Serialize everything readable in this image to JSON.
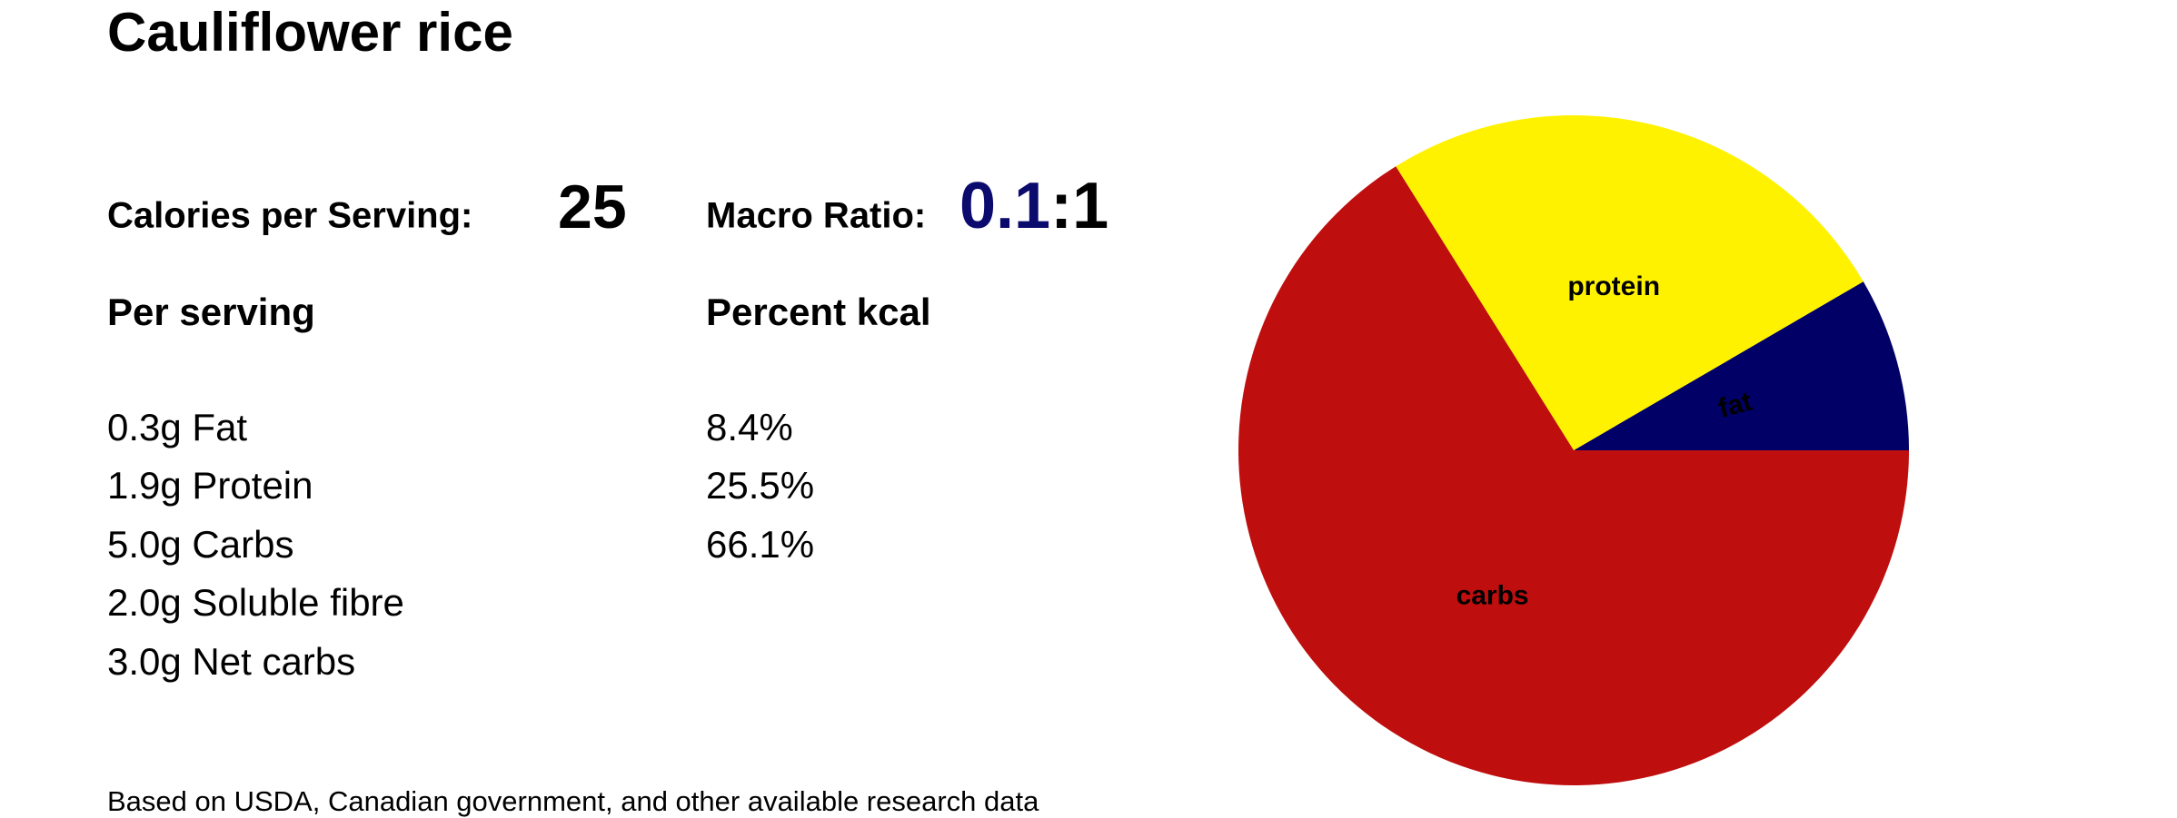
{
  "header": {
    "title": "Cauliflower rice"
  },
  "summary": {
    "calories_label": "Calories per Serving:",
    "calories": "25",
    "ratio_label": "Macro Ratio:",
    "ratio": "0.1",
    "ratio_suffix": ":1",
    "ratio_color": "#0b0b6e"
  },
  "per_serving": {
    "heading": "Per serving",
    "rows": [
      "0.3g Fat",
      "1.9g Protein",
      "5.0g Carbs",
      "2.0g Soluble fibre",
      "3.0g Net carbs"
    ]
  },
  "percent_kcal": {
    "heading": "Percent kcal"
  },
  "footer": {
    "note": "Based on USDA, Canadian government, and other available research data"
  },
  "chart_data": {
    "type": "pie",
    "categories": [
      "fat",
      "protein",
      "carbs"
    ],
    "values": [
      8.4,
      25.5,
      66.1
    ],
    "value_labels": [
      "8.4%",
      "25.5%",
      "66.1%"
    ],
    "colors": [
      "#000066",
      "#fff200",
      "#bf0e0e"
    ],
    "label_colors": [
      "#fff200",
      "#1a1ab8",
      "#fff200"
    ]
  }
}
